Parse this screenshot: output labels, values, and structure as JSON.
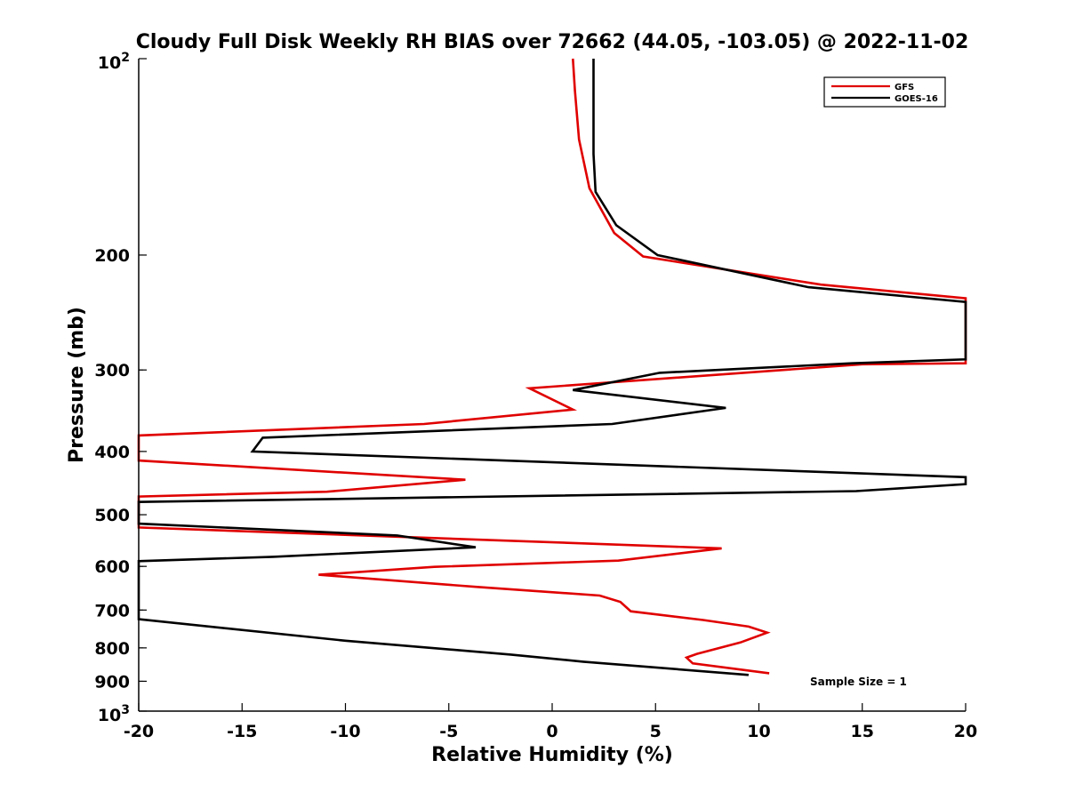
{
  "chart_data": {
    "type": "line",
    "title": "Cloudy Full Disk Weekly RH BIAS over 72662 (44.05, -103.05) @ 2022-11-02",
    "xlabel": "Relative Humidity (%)",
    "ylabel": "Pressure (mb)",
    "xlim": [
      -20,
      20
    ],
    "ylim": [
      100,
      1000
    ],
    "y_scale": "log",
    "y_reversed": true,
    "grid": false,
    "legend_position": "top-right",
    "x_ticks": [
      "-20",
      "-15",
      "-10",
      "-5",
      "0",
      "5",
      "10",
      "15",
      "20"
    ],
    "y_ticks": [
      {
        "value": 100,
        "base": "10",
        "exp": "2"
      },
      {
        "value": 200,
        "label": "200"
      },
      {
        "value": 300,
        "label": "300"
      },
      {
        "value": 400,
        "label": "400"
      },
      {
        "value": 500,
        "label": "500"
      },
      {
        "value": 600,
        "label": "600"
      },
      {
        "value": 700,
        "label": "700"
      },
      {
        "value": 800,
        "label": "800"
      },
      {
        "value": 900,
        "label": "900"
      },
      {
        "value": 1000,
        "base": "10",
        "exp": "3"
      }
    ],
    "annotation": "Sample Size = 1",
    "series": [
      {
        "name": "GFS",
        "color": "#e00000",
        "points": [
          [
            1.0,
            100
          ],
          [
            1.1,
            112
          ],
          [
            1.3,
            133
          ],
          [
            1.8,
            158
          ],
          [
            3.0,
            185
          ],
          [
            4.4,
            201
          ],
          [
            13,
            222
          ],
          [
            20,
            233
          ],
          [
            20,
            293
          ],
          [
            15,
            294
          ],
          [
            -1.1,
            320
          ],
          [
            1.0,
            345
          ],
          [
            -6.2,
            363
          ],
          [
            -20,
            378
          ],
          [
            -20,
            413
          ],
          [
            -4.2,
            442
          ],
          [
            -10.9,
            461
          ],
          [
            -20,
            469
          ],
          [
            -20,
            523
          ],
          [
            8.2,
            563
          ],
          [
            3.2,
            588
          ],
          [
            -5.7,
            601
          ],
          [
            -11.3,
            618
          ],
          [
            -3.7,
            645
          ],
          [
            2.3,
            665
          ],
          [
            3.3,
            680
          ],
          [
            3.8,
            703
          ],
          [
            7.3,
            725
          ],
          [
            9.5,
            742
          ],
          [
            10.4,
            758
          ],
          [
            9.1,
            785
          ],
          [
            7.0,
            817
          ],
          [
            6.5,
            828
          ],
          [
            6.8,
            845
          ],
          [
            10.5,
            875
          ]
        ]
      },
      {
        "name": "GOES-16",
        "color": "#000000",
        "points": [
          [
            2.0,
            100
          ],
          [
            2.0,
            140
          ],
          [
            2.1,
            160
          ],
          [
            3.1,
            180
          ],
          [
            5.1,
            200
          ],
          [
            12.4,
            224
          ],
          [
            20,
            236
          ],
          [
            20,
            289
          ],
          [
            14.5,
            293
          ],
          [
            5.2,
            303
          ],
          [
            1.0,
            322
          ],
          [
            8.4,
            343
          ],
          [
            2.9,
            363
          ],
          [
            -14.0,
            381
          ],
          [
            -14.5,
            400
          ],
          [
            20,
            438
          ],
          [
            20,
            449
          ],
          [
            14.7,
            460
          ],
          [
            -20,
            478
          ],
          [
            -20,
            516
          ],
          [
            -7.5,
            538
          ],
          [
            -3.7,
            561
          ],
          [
            -13.5,
            580
          ],
          [
            -20,
            589
          ],
          [
            -20,
            723
          ],
          [
            -10.0,
            780
          ],
          [
            -2.0,
            819
          ],
          [
            1.5,
            840
          ],
          [
            9.5,
            880
          ]
        ]
      }
    ]
  }
}
